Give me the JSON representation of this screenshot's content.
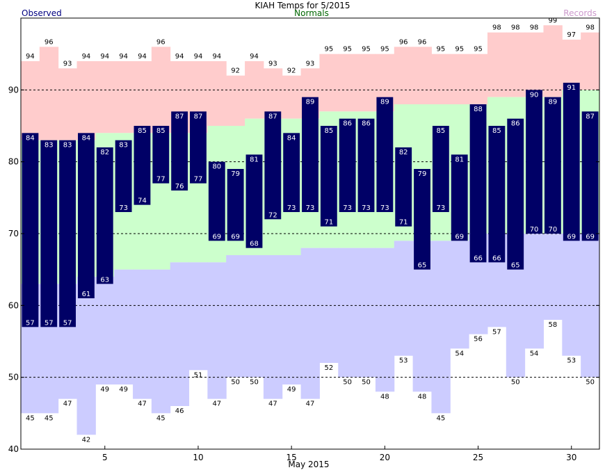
{
  "chart_data": {
    "type": "bar",
    "title": "KIAH Temps for 5/2015",
    "xlabel": "May 2015",
    "legend": {
      "observed": "Observed",
      "normals": "Normals",
      "records": "Records"
    },
    "colors": {
      "observed": "#000066",
      "normals_band": "#ccffcc",
      "record_high_band": "#ffcccc",
      "record_low_band": "#ccccff",
      "legend_observed": "#000080",
      "legend_normals": "#006600",
      "legend_records": "#cc99cc"
    },
    "ylim": [
      40,
      100
    ],
    "xlim": [
      1,
      31
    ],
    "y_ticks": [
      40,
      50,
      60,
      70,
      80,
      90
    ],
    "x_ticks": [
      5,
      10,
      15,
      20,
      25,
      30
    ],
    "days": [
      1,
      2,
      3,
      4,
      5,
      6,
      7,
      8,
      9,
      10,
      11,
      12,
      13,
      14,
      15,
      16,
      17,
      18,
      19,
      20,
      21,
      22,
      23,
      24,
      25,
      26,
      27,
      28,
      29,
      30,
      31
    ],
    "observed_high": [
      84,
      83,
      83,
      84,
      82,
      83,
      85,
      85,
      87,
      87,
      80,
      79,
      81,
      87,
      84,
      89,
      85,
      86,
      86,
      89,
      82,
      79,
      85,
      81,
      88,
      85,
      86,
      90,
      89,
      91,
      87
    ],
    "observed_low": [
      57,
      57,
      57,
      61,
      63,
      73,
      74,
      77,
      76,
      77,
      69,
      69,
      68,
      72,
      73,
      73,
      71,
      73,
      73,
      73,
      71,
      65,
      73,
      69,
      66,
      66,
      65,
      70,
      70,
      69,
      69
    ],
    "normal_high": [
      83,
      83,
      83,
      83,
      84,
      84,
      84,
      84,
      84,
      84,
      85,
      85,
      86,
      86,
      86,
      86,
      87,
      87,
      87,
      87,
      88,
      88,
      88,
      88,
      88,
      89,
      89,
      89,
      89,
      90,
      90
    ],
    "normal_low": [
      63,
      63,
      63,
      64,
      64,
      65,
      65,
      65,
      66,
      66,
      66,
      67,
      67,
      67,
      67,
      68,
      68,
      68,
      68,
      68,
      69,
      69,
      69,
      69,
      70,
      70,
      70,
      70,
      70,
      70,
      70
    ],
    "record_high": [
      94,
      96,
      93,
      94,
      94,
      94,
      94,
      96,
      94,
      94,
      94,
      92,
      94,
      93,
      92,
      93,
      95,
      95,
      95,
      95,
      96,
      96,
      95,
      95,
      95,
      98,
      98,
      98,
      99,
      97,
      98
    ],
    "record_low": [
      45,
      45,
      47,
      42,
      49,
      49,
      47,
      45,
      46,
      51,
      47,
      50,
      50,
      47,
      49,
      47,
      52,
      50,
      50,
      48,
      53,
      48,
      45,
      54,
      56,
      57,
      50,
      54,
      58,
      53,
      50
    ]
  }
}
